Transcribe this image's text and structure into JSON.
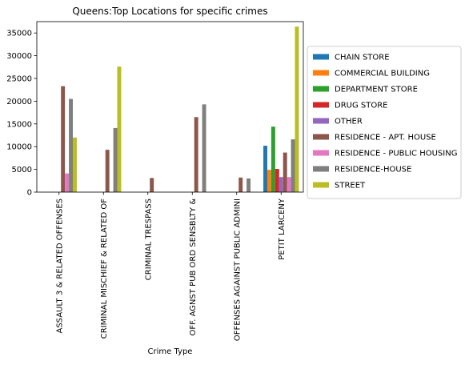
{
  "chart_data": {
    "type": "bar",
    "title": "Queens:Top Locations for specific crimes",
    "xlabel": "Crime Type",
    "ylabel": "",
    "ylim": [
      0,
      37500
    ],
    "yticks": [
      0,
      5000,
      10000,
      15000,
      20000,
      25000,
      30000,
      35000
    ],
    "grid": false,
    "legend_position": "right",
    "categories": [
      "ASSAULT 3 & RELATED OFFENSES",
      "CRIMINAL MISCHIEF & RELATED OF",
      "CRIMINAL TRESPASS",
      "OFF. AGNST PUB ORD SENSBLTY &",
      "OFFENSES AGAINST PUBLIC ADMINI",
      "PETIT LARCENY"
    ],
    "series": [
      {
        "name": "CHAIN STORE",
        "color": "#1f77b4",
        "values": [
          0,
          0,
          0,
          0,
          0,
          10200
        ]
      },
      {
        "name": "COMMERCIAL BUILDING",
        "color": "#ff7f0e",
        "values": [
          0,
          0,
          0,
          0,
          0,
          4900
        ]
      },
      {
        "name": "DEPARTMENT STORE",
        "color": "#2ca02c",
        "values": [
          0,
          0,
          0,
          0,
          0,
          14400
        ]
      },
      {
        "name": "DRUG STORE",
        "color": "#d62728",
        "values": [
          0,
          0,
          0,
          0,
          0,
          5100
        ]
      },
      {
        "name": "OTHER",
        "color": "#9467bd",
        "values": [
          0,
          0,
          0,
          0,
          0,
          3300
        ]
      },
      {
        "name": "RESIDENCE - APT. HOUSE",
        "color": "#8c564b",
        "values": [
          23300,
          9300,
          3100,
          16500,
          3200,
          8700
        ]
      },
      {
        "name": "RESIDENCE - PUBLIC HOUSING",
        "color": "#e377c2",
        "values": [
          4100,
          0,
          0,
          0,
          0,
          3300
        ]
      },
      {
        "name": "RESIDENCE-HOUSE",
        "color": "#7f7f7f",
        "values": [
          20500,
          14100,
          0,
          19300,
          3000,
          11600
        ]
      },
      {
        "name": "STREET",
        "color": "#bcbd22",
        "values": [
          12000,
          27600,
          0,
          0,
          0,
          36400
        ]
      }
    ]
  }
}
